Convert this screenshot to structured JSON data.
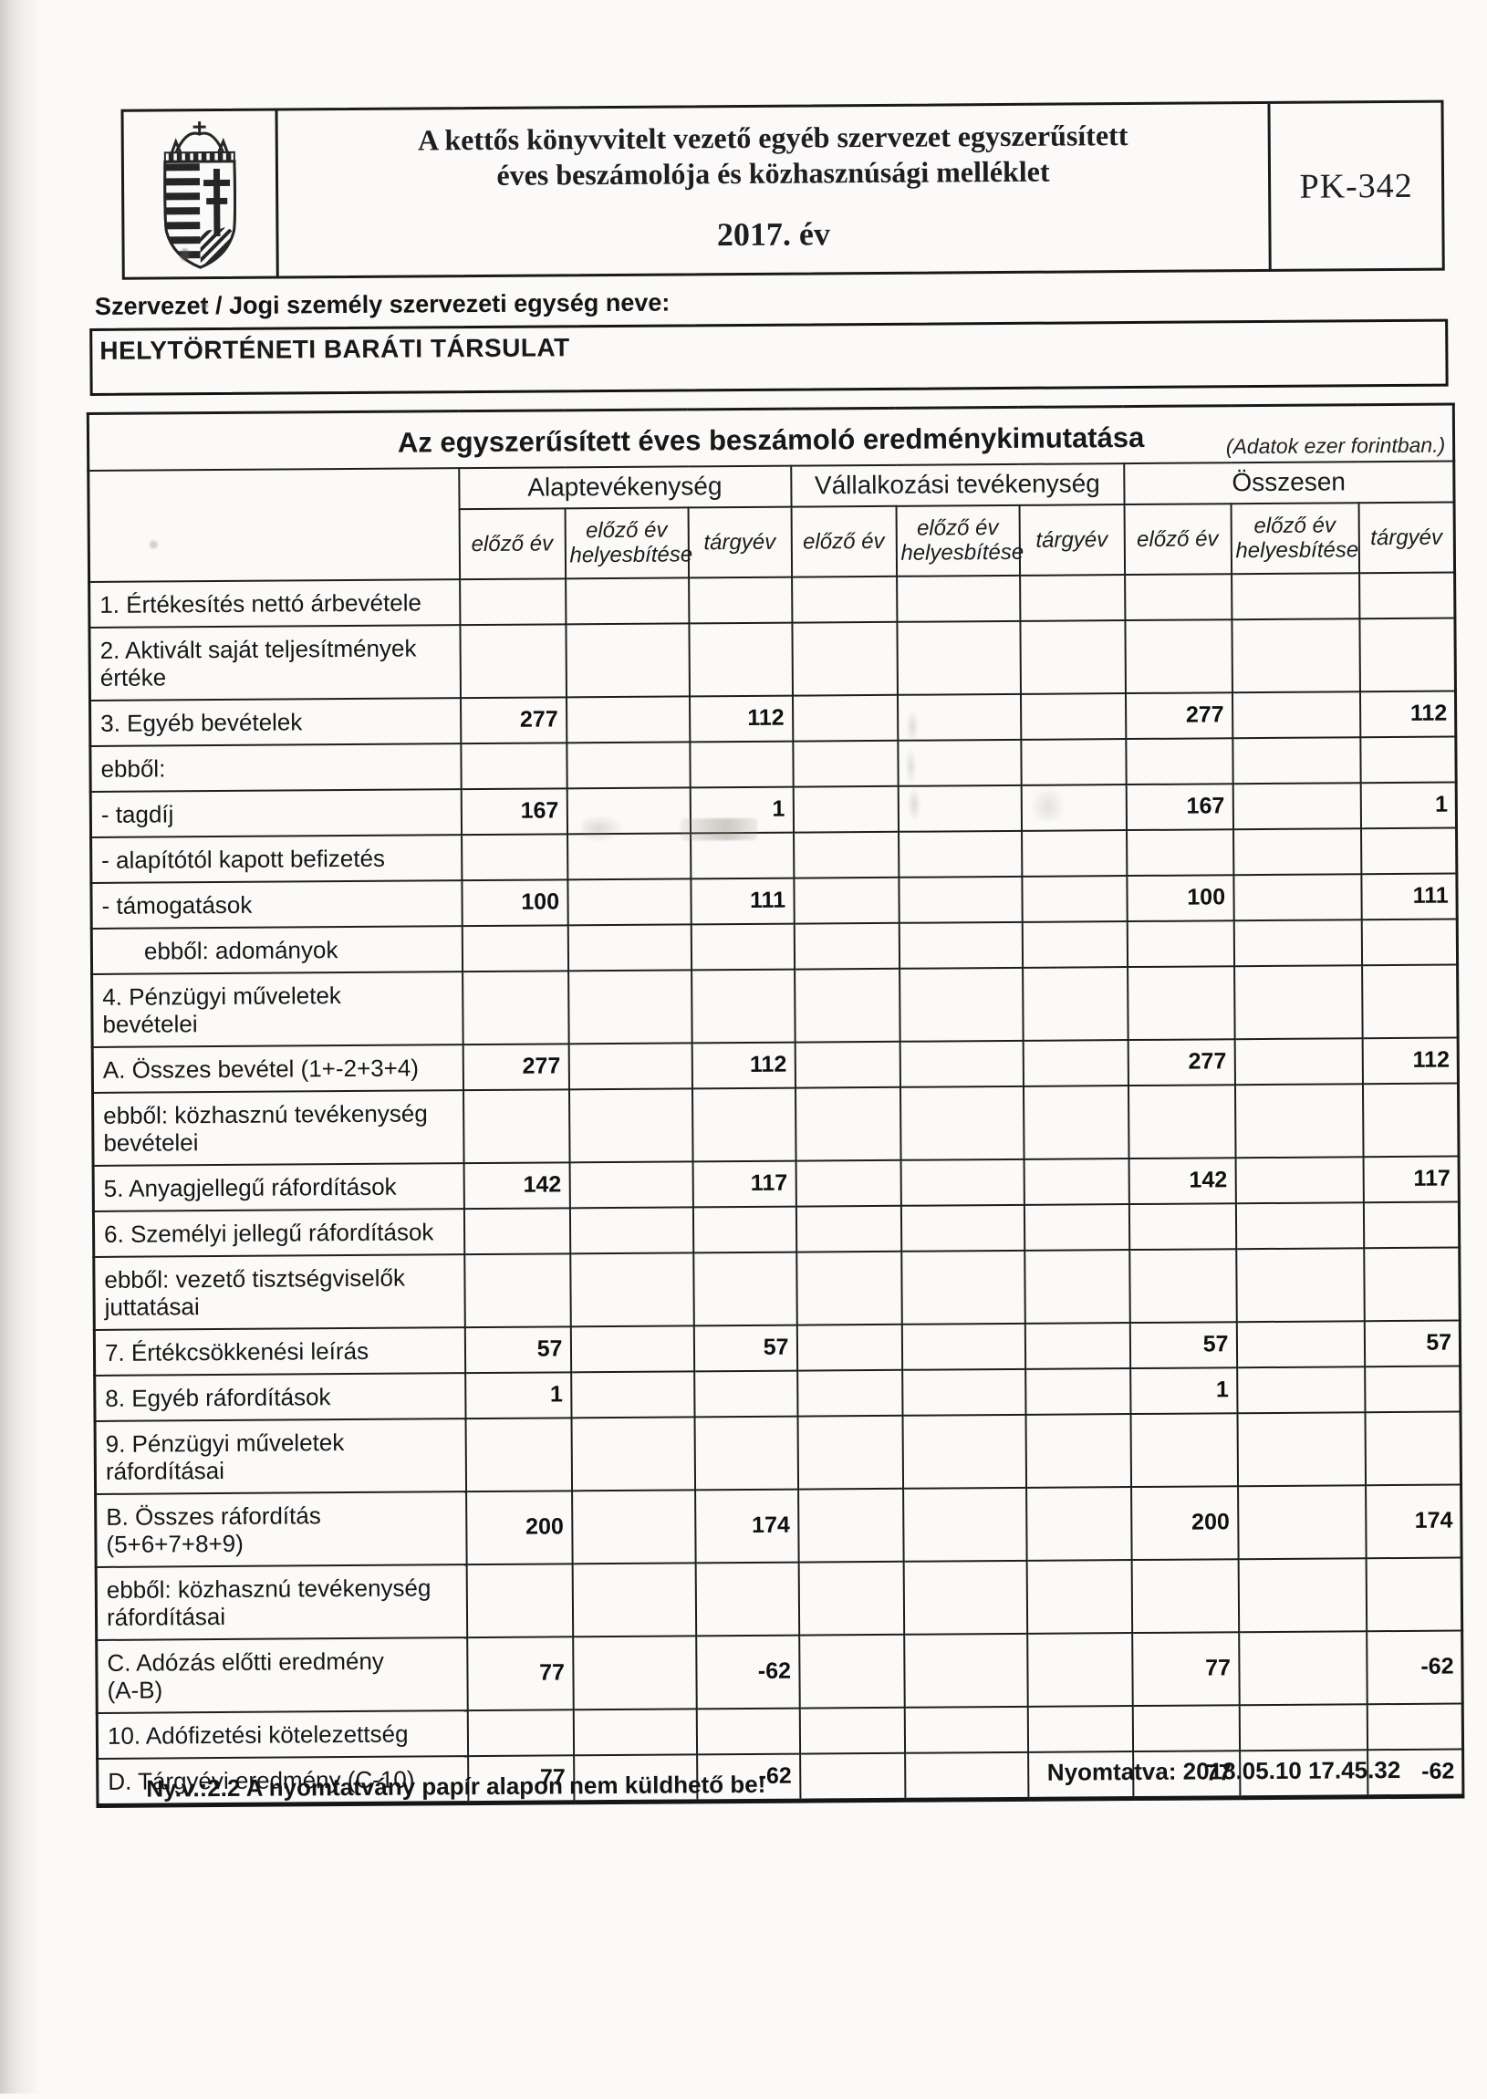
{
  "header": {
    "title_line1": "A kettős könyvvitelt vezető egyéb szervezet egyszerűsített",
    "title_line2": "éves beszámolója és közhasznúsági melléklet",
    "year": "2017. év",
    "form_code": "PK-342",
    "logo_icon": "hungary-coat-of-arms"
  },
  "org": {
    "label": "Szervezet / Jogi személy szervezeti egység neve:",
    "name": "HELYTÖRTÉNETI BARÁTI TÁRSULAT"
  },
  "table": {
    "title": "Az egyszerűsített éves beszámoló eredménykimutatása",
    "unit_note": "(Adatok ezer forintban.)",
    "groups": [
      "Alaptevékenység",
      "Vállalkozási tevékenység",
      "Összesen"
    ],
    "subheaders": [
      "előző év",
      "előző év\nhelyesbítése",
      "tárgyév"
    ],
    "rows": [
      {
        "label": "1. Értékesítés nettó árbevétele",
        "values": [
          "",
          "",
          "",
          "",
          "",
          "",
          "",
          "",
          ""
        ]
      },
      {
        "label": "2. Aktivált saját teljesítmények\nértéke",
        "values": [
          "",
          "",
          "",
          "",
          "",
          "",
          "",
          "",
          ""
        ]
      },
      {
        "label": "3. Egyéb bevételek",
        "values": [
          "277",
          "",
          "112",
          "",
          "",
          "",
          "277",
          "",
          "112"
        ]
      },
      {
        "label": "ebből:",
        "values": [
          "",
          "",
          "",
          "",
          "",
          "",
          "",
          "",
          ""
        ]
      },
      {
        "label": "- tagdíj",
        "values": [
          "167",
          "",
          "1",
          "",
          "",
          "",
          "167",
          "",
          "1"
        ]
      },
      {
        "label": "- alapítótól kapott befizetés",
        "values": [
          "",
          "",
          "",
          "",
          "",
          "",
          "",
          "",
          ""
        ]
      },
      {
        "label": "- támogatások",
        "values": [
          "100",
          "",
          "111",
          "",
          "",
          "",
          "100",
          "",
          "111"
        ]
      },
      {
        "label": "ebből: adományok",
        "indent": true,
        "values": [
          "",
          "",
          "",
          "",
          "",
          "",
          "",
          "",
          ""
        ]
      },
      {
        "label": "4. Pénzügyi műveletek\nbevételei",
        "values": [
          "",
          "",
          "",
          "",
          "",
          "",
          "",
          "",
          ""
        ]
      },
      {
        "label": "A. Összes bevétel (1+-2+3+4)",
        "values": [
          "277",
          "",
          "112",
          "",
          "",
          "",
          "277",
          "",
          "112"
        ]
      },
      {
        "label": "ebből: közhasznú tevékenység\nbevételei",
        "values": [
          "",
          "",
          "",
          "",
          "",
          "",
          "",
          "",
          ""
        ]
      },
      {
        "label": "5. Anyagjellegű ráfordítások",
        "values": [
          "142",
          "",
          "117",
          "",
          "",
          "",
          "142",
          "",
          "117"
        ]
      },
      {
        "label": "6. Személyi jellegű ráfordítások",
        "values": [
          "",
          "",
          "",
          "",
          "",
          "",
          "",
          "",
          ""
        ]
      },
      {
        "label": "ebből: vezető tisztségviselők\njuttatásai",
        "values": [
          "",
          "",
          "",
          "",
          "",
          "",
          "",
          "",
          ""
        ]
      },
      {
        "label": "7. Értékcsökkenési leírás",
        "values": [
          "57",
          "",
          "57",
          "",
          "",
          "",
          "57",
          "",
          "57"
        ]
      },
      {
        "label": "8. Egyéb ráfordítások",
        "values": [
          "1",
          "",
          "",
          "",
          "",
          "",
          "1",
          "",
          ""
        ]
      },
      {
        "label": "9. Pénzügyi műveletek\nráfordításai",
        "values": [
          "",
          "",
          "",
          "",
          "",
          "",
          "",
          "",
          ""
        ]
      },
      {
        "label": "B. Összes ráfordítás\n(5+6+7+8+9)",
        "values": [
          "200",
          "",
          "174",
          "",
          "",
          "",
          "200",
          "",
          "174"
        ]
      },
      {
        "label": "ebből: közhasznú tevékenység\nráfordításai",
        "values": [
          "",
          "",
          "",
          "",
          "",
          "",
          "",
          "",
          ""
        ]
      },
      {
        "label": "C. Adózás előtti eredmény\n(A-B)",
        "values": [
          "77",
          "",
          "-62",
          "",
          "",
          "",
          "77",
          "",
          "-62"
        ]
      },
      {
        "label": "10. Adófizetési kötelezettség",
        "values": [
          "",
          "",
          "",
          "",
          "",
          "",
          "",
          "",
          ""
        ]
      },
      {
        "label": "D. Tárgyévi eredmény (C-10)",
        "values": [
          "77",
          "",
          "-62",
          "",
          "",
          "",
          "77",
          "",
          "-62"
        ]
      }
    ]
  },
  "footer": {
    "note": "Ny.v.:2.2 A nyomtatvány papír alapon nem küldhető be!",
    "printed": "Nyomtatva: 2018.05.10 17.45.32"
  }
}
